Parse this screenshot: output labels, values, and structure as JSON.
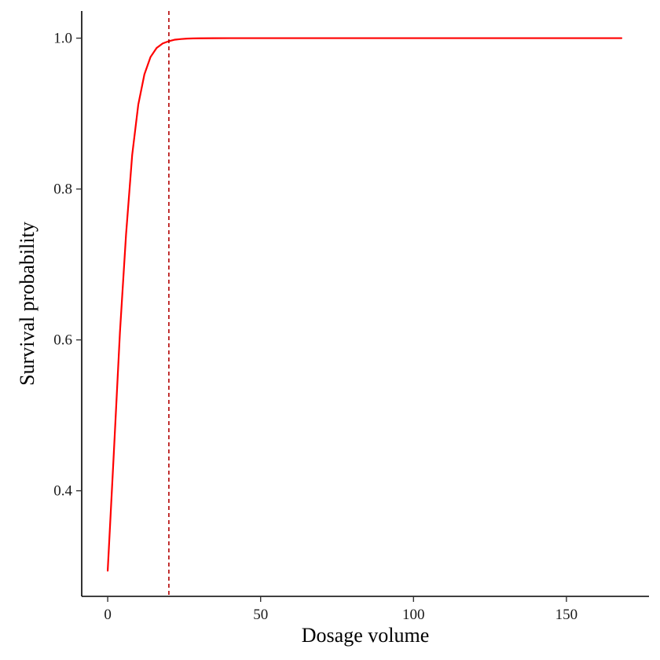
{
  "chart_data": {
    "type": "line",
    "title": "",
    "xlabel": "Dosage volume",
    "ylabel": "Survival probability",
    "xlim": [
      -8.5,
      177
    ],
    "ylim": [
      0.26,
      1.036
    ],
    "x_ticks": [
      0,
      50,
      100,
      150
    ],
    "x_tick_labels": [
      "0",
      "50",
      "100",
      "150"
    ],
    "y_ticks": [
      0.4,
      0.6,
      0.8,
      1.0
    ],
    "y_tick_labels": [
      "0.4",
      "0.6",
      "0.8",
      "1.0"
    ],
    "grid": false,
    "legend": "none",
    "series": [
      {
        "color": "#ff0000",
        "x": [
          0,
          2,
          4,
          6,
          8,
          10,
          12,
          14,
          16,
          18,
          20,
          22,
          24,
          26,
          28,
          30,
          35,
          40,
          50,
          60,
          80,
          100,
          120,
          140,
          160,
          168
        ],
        "y": [
          0.294,
          0.45,
          0.61,
          0.74,
          0.845,
          0.912,
          0.952,
          0.975,
          0.987,
          0.993,
          0.996,
          0.998,
          0.9988,
          0.9994,
          0.9997,
          0.9998,
          0.9999,
          1.0,
          1.0,
          1.0,
          1.0,
          1.0,
          1.0,
          1.0,
          1.0,
          1.0
        ]
      }
    ],
    "reference_lines": [
      {
        "orientation": "vertical",
        "x": 20,
        "style": "dashed",
        "color": "#b30000"
      }
    ]
  }
}
